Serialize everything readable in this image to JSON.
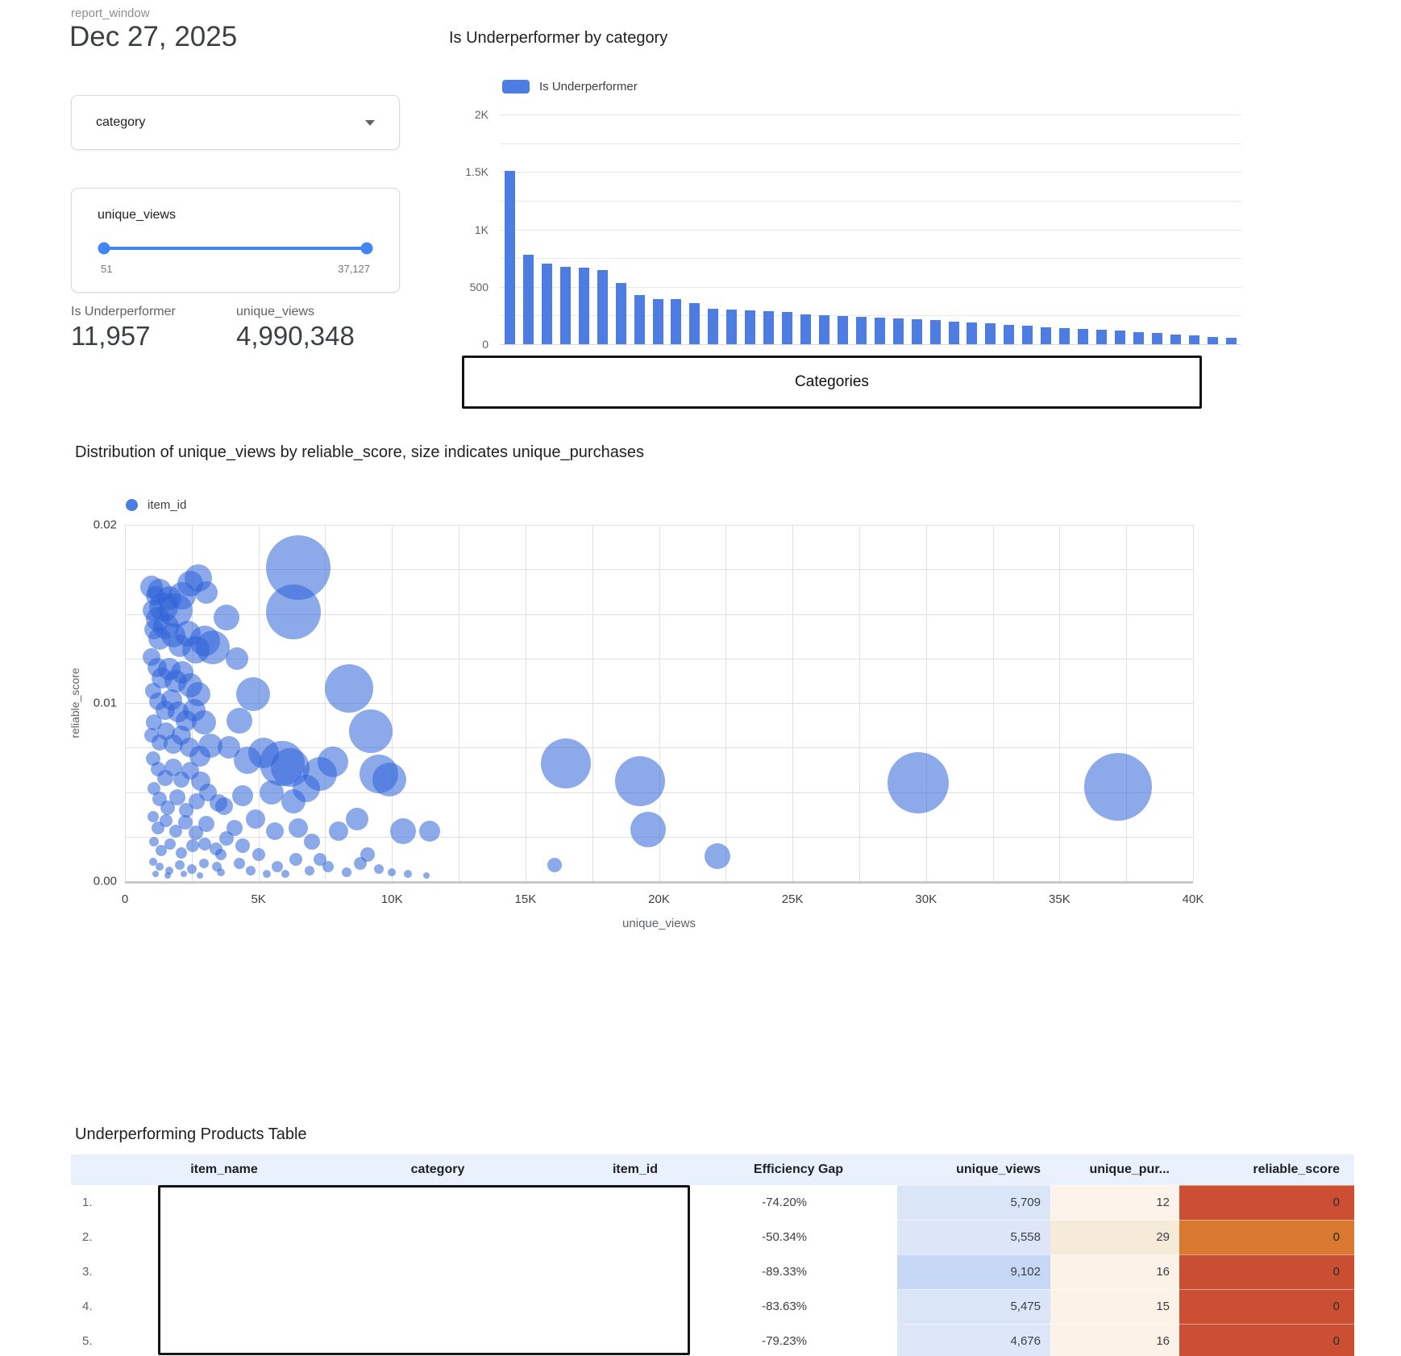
{
  "header": {
    "control_label": "report_window",
    "date": "Dec 27, 2025"
  },
  "controls": {
    "category_dropdown": {
      "label": "category"
    },
    "range_slider": {
      "label": "unique_views",
      "min": "51",
      "max": "37,127"
    }
  },
  "scorecards": [
    {
      "label": "Is Underperformer",
      "value": "11,957"
    },
    {
      "label": "unique_views",
      "value": "4,990,348"
    }
  ],
  "colors": {
    "accent_blue": "#4d7de2",
    "slider_blue": "#4285f4",
    "table_header_bg": "#e9f1fc"
  },
  "chart_data": [
    {
      "type": "bar",
      "title": "Is Underperformer by category",
      "legend": [
        {
          "label": "Is Underperformer",
          "color": "#4d7de2"
        }
      ],
      "xlabel": "Categories",
      "ylabel": "",
      "ylim": [
        0,
        2000
      ],
      "grid_minor_step": 250,
      "y_ticks": [
        {
          "value": 0,
          "label": "0"
        },
        {
          "value": 500,
          "label": "500"
        },
        {
          "value": 1000,
          "label": "1K"
        },
        {
          "value": 1500,
          "label": "1.5K"
        },
        {
          "value": 2000,
          "label": "2K"
        }
      ],
      "values": [
        1510,
        780,
        700,
        675,
        665,
        645,
        535,
        425,
        395,
        390,
        360,
        310,
        300,
        295,
        290,
        280,
        262,
        252,
        246,
        240,
        234,
        228,
        220,
        210,
        200,
        190,
        180,
        170,
        160,
        150,
        142,
        134,
        126,
        118,
        108,
        95,
        85,
        75,
        66,
        58
      ]
    },
    {
      "type": "scatter",
      "title": "Distribution of unique_views by reliable_score, size indicates unique_purchases",
      "legend": [
        {
          "label": "item_id",
          "color": "#4d7de2"
        }
      ],
      "xlabel": "unique_views",
      "ylabel": "reliable_score",
      "xlim": [
        0,
        40000
      ],
      "ylim": [
        0,
        0.02
      ],
      "x_grid_step": 2500,
      "y_grid_step": 0.0025,
      "x_ticks": [
        {
          "value": 0,
          "label": "0"
        },
        {
          "value": 5000,
          "label": "5K"
        },
        {
          "value": 10000,
          "label": "10K"
        },
        {
          "value": 15000,
          "label": "15K"
        },
        {
          "value": 20000,
          "label": "20K"
        },
        {
          "value": 25000,
          "label": "25K"
        },
        {
          "value": 30000,
          "label": "30K"
        },
        {
          "value": 35000,
          "label": "35K"
        },
        {
          "value": 40000,
          "label": "40K"
        }
      ],
      "y_ticks": [
        {
          "value": 0,
          "label": "0.00"
        },
        {
          "value": 0.01,
          "label": "0.01"
        },
        {
          "value": 0.02,
          "label": "0.02"
        }
      ],
      "point_color": "rgba(45,98,217,0.55)",
      "points": [
        [
          6500,
          0.0176,
          40
        ],
        [
          6300,
          0.0151,
          34
        ],
        [
          8400,
          0.0108,
          30
        ],
        [
          9200,
          0.0084,
          27
        ],
        [
          16500,
          0.0066,
          31
        ],
        [
          19300,
          0.0056,
          31
        ],
        [
          19600,
          0.0029,
          22
        ],
        [
          22200,
          0.0014,
          16
        ],
        [
          16100,
          0.0009,
          9
        ],
        [
          29700,
          0.0055,
          38
        ],
        [
          37200,
          0.0053,
          42
        ],
        [
          3800,
          0.0148,
          16
        ],
        [
          4200,
          0.0125,
          14
        ],
        [
          4800,
          0.0105,
          21
        ],
        [
          4300,
          0.009,
          16
        ],
        [
          3900,
          0.0075,
          14
        ],
        [
          4600,
          0.0068,
          17
        ],
        [
          5200,
          0.0072,
          19
        ],
        [
          5900,
          0.0066,
          28
        ],
        [
          6200,
          0.0064,
          24
        ],
        [
          5500,
          0.005,
          15
        ],
        [
          4400,
          0.0048,
          13
        ],
        [
          3700,
          0.0042,
          11
        ],
        [
          4100,
          0.003,
          10
        ],
        [
          4900,
          0.0035,
          12
        ],
        [
          5600,
          0.0028,
          11
        ],
        [
          6300,
          0.0045,
          15
        ],
        [
          6800,
          0.0052,
          17
        ],
        [
          7300,
          0.006,
          21
        ],
        [
          7800,
          0.0067,
          19
        ],
        [
          6500,
          0.003,
          12
        ],
        [
          7000,
          0.0022,
          10
        ],
        [
          5000,
          0.0015,
          8
        ],
        [
          4300,
          0.001,
          7
        ],
        [
          5700,
          0.0008,
          7
        ],
        [
          6400,
          0.0012,
          8
        ],
        [
          7600,
          0.0008,
          7
        ],
        [
          8000,
          0.0028,
          12
        ],
        [
          8700,
          0.0035,
          14
        ],
        [
          9500,
          0.006,
          24
        ],
        [
          9900,
          0.0057,
          21
        ],
        [
          10400,
          0.0028,
          16
        ],
        [
          11400,
          0.0028,
          13
        ],
        [
          8300,
          0.0005,
          6
        ],
        [
          9500,
          0.0007,
          6
        ],
        [
          10000,
          0.0005,
          5
        ],
        [
          10600,
          0.0004,
          5
        ],
        [
          11300,
          0.0003,
          4
        ],
        [
          1000,
          0.0165,
          14
        ],
        [
          1150,
          0.016,
          12
        ],
        [
          1300,
          0.0163,
          15
        ],
        [
          1050,
          0.0152,
          13
        ],
        [
          1250,
          0.0147,
          15
        ],
        [
          1450,
          0.0154,
          18
        ],
        [
          1650,
          0.0159,
          15
        ],
        [
          1900,
          0.0152,
          21
        ],
        [
          2150,
          0.016,
          17
        ],
        [
          2450,
          0.0167,
          16
        ],
        [
          2750,
          0.017,
          17
        ],
        [
          3050,
          0.0162,
          14
        ],
        [
          1100,
          0.0141,
          12
        ],
        [
          1300,
          0.0136,
          14
        ],
        [
          1550,
          0.0143,
          16
        ],
        [
          1800,
          0.0138,
          15
        ],
        [
          2050,
          0.0132,
          14
        ],
        [
          2350,
          0.0139,
          16
        ],
        [
          2650,
          0.013,
          17
        ],
        [
          3000,
          0.0135,
          19
        ],
        [
          3300,
          0.0131,
          21
        ],
        [
          1000,
          0.0126,
          11
        ],
        [
          1200,
          0.012,
          12
        ],
        [
          1400,
          0.0114,
          13
        ],
        [
          1650,
          0.0119,
          14
        ],
        [
          1900,
          0.0112,
          14
        ],
        [
          2150,
          0.0117,
          14
        ],
        [
          2450,
          0.011,
          15
        ],
        [
          2750,
          0.0105,
          15
        ],
        [
          1050,
          0.0107,
          10
        ],
        [
          1250,
          0.0101,
          11
        ],
        [
          1500,
          0.0096,
          12
        ],
        [
          1750,
          0.0102,
          13
        ],
        [
          2000,
          0.0095,
          13
        ],
        [
          2300,
          0.009,
          13
        ],
        [
          2600,
          0.0096,
          14
        ],
        [
          2950,
          0.0089,
          15
        ],
        [
          1100,
          0.0089,
          10
        ],
        [
          1000,
          0.0082,
          9
        ],
        [
          1300,
          0.0078,
          10
        ],
        [
          1550,
          0.0084,
          11
        ],
        [
          1800,
          0.0077,
          12
        ],
        [
          2100,
          0.0082,
          12
        ],
        [
          2400,
          0.0075,
          12
        ],
        [
          2800,
          0.007,
          13
        ],
        [
          3200,
          0.0076,
          15
        ],
        [
          1050,
          0.0069,
          9
        ],
        [
          1250,
          0.0063,
          9
        ],
        [
          1500,
          0.0058,
          10
        ],
        [
          1800,
          0.0064,
          11
        ],
        [
          2100,
          0.0057,
          10
        ],
        [
          2450,
          0.0062,
          11
        ],
        [
          2850,
          0.0056,
          12
        ],
        [
          1100,
          0.0052,
          8
        ],
        [
          1300,
          0.0046,
          9
        ],
        [
          1600,
          0.0041,
          9
        ],
        [
          1950,
          0.0047,
          10
        ],
        [
          2300,
          0.004,
          9
        ],
        [
          2700,
          0.0045,
          10
        ],
        [
          3100,
          0.005,
          11
        ],
        [
          3500,
          0.0044,
          11
        ],
        [
          1050,
          0.0036,
          7
        ],
        [
          1250,
          0.003,
          8
        ],
        [
          1550,
          0.0034,
          8
        ],
        [
          1900,
          0.0028,
          8
        ],
        [
          2250,
          0.0033,
          9
        ],
        [
          2650,
          0.0027,
          9
        ],
        [
          3050,
          0.0032,
          10
        ],
        [
          1100,
          0.0022,
          6
        ],
        [
          1350,
          0.0017,
          7
        ],
        [
          1700,
          0.0021,
          7
        ],
        [
          2100,
          0.0016,
          7
        ],
        [
          2550,
          0.002,
          8
        ],
        [
          3000,
          0.0021,
          8
        ],
        [
          3400,
          0.0018,
          8
        ],
        [
          1050,
          0.0011,
          5
        ],
        [
          1300,
          0.0008,
          5
        ],
        [
          1650,
          0.0006,
          5
        ],
        [
          2050,
          0.0009,
          6
        ],
        [
          2500,
          0.0007,
          6
        ],
        [
          2950,
          0.001,
          6
        ],
        [
          3450,
          0.0008,
          6
        ],
        [
          1150,
          0.0004,
          4
        ],
        [
          1600,
          0.0003,
          4
        ],
        [
          2200,
          0.0004,
          4
        ],
        [
          2800,
          0.0003,
          4
        ],
        [
          3600,
          0.0005,
          5
        ],
        [
          4400,
          0.002,
          9
        ],
        [
          3800,
          0.0024,
          9
        ],
        [
          3600,
          0.0015,
          7
        ],
        [
          4700,
          0.0006,
          6
        ],
        [
          5300,
          0.0004,
          5
        ],
        [
          6000,
          0.0004,
          5
        ],
        [
          6900,
          0.0006,
          6
        ],
        [
          7300,
          0.0012,
          8
        ],
        [
          8800,
          0.001,
          8
        ],
        [
          9100,
          0.0015,
          9
        ]
      ]
    }
  ],
  "table": {
    "title": "Underperforming Products Table",
    "columns": [
      "",
      "item_name",
      "category",
      "item_id",
      "Efficiency Gap",
      "unique_views",
      "unique_pur...",
      "reliable_score"
    ],
    "rows": [
      {
        "num": "1.",
        "efficiency_gap": "-74.20%",
        "unique_views": "5,709",
        "unique_purchases": "12",
        "reliable_score": "0",
        "views_bg": "#dbe5f8",
        "pur_bg": "#fdf3ea",
        "rel_bg": "#cc4f33"
      },
      {
        "num": "2.",
        "efficiency_gap": "-50.34%",
        "unique_views": "5,558",
        "unique_purchases": "29",
        "reliable_score": "0",
        "views_bg": "#dce6f8",
        "pur_bg": "#f6ebd9",
        "rel_bg": "#d9782f"
      },
      {
        "num": "3.",
        "efficiency_gap": "-89.33%",
        "unique_views": "9,102",
        "unique_purchases": "16",
        "reliable_score": "0",
        "views_bg": "#c7d8f6",
        "pur_bg": "#fdf2e8",
        "rel_bg": "#ca4e32"
      },
      {
        "num": "4.",
        "efficiency_gap": "-83.63%",
        "unique_views": "5,475",
        "unique_purchases": "15",
        "reliable_score": "0",
        "views_bg": "#dbe5f8",
        "pur_bg": "#fdf2e8",
        "rel_bg": "#cb5033"
      },
      {
        "num": "5.",
        "efficiency_gap": "-79.23%",
        "unique_views": "4,676",
        "unique_purchases": "16",
        "reliable_score": "0",
        "views_bg": "#dde7f9",
        "pur_bg": "#fdf2e8",
        "rel_bg": "#cb5033"
      }
    ]
  }
}
